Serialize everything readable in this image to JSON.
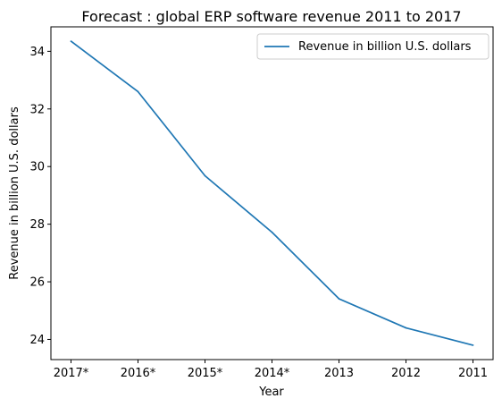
{
  "chart_data": {
    "type": "line",
    "title": "Forecast : global ERP software revenue 2011 to 2017",
    "xlabel": "Year",
    "ylabel": "Revenue in billion U.S. dollars",
    "categories": [
      "2017*",
      "2016*",
      "2015*",
      "2014*",
      "2013",
      "2012",
      "2011"
    ],
    "series": [
      {
        "name": "Revenue in billion U.S. dollars",
        "values": [
          34.35,
          32.6,
          29.68,
          27.72,
          25.41,
          24.4,
          23.8
        ],
        "color": "#1f77b4"
      }
    ],
    "ylim": [
      23.3,
      34.85
    ],
    "yticks": [
      24,
      26,
      28,
      30,
      32,
      34
    ],
    "legend_position": "top-right",
    "grid": false
  }
}
